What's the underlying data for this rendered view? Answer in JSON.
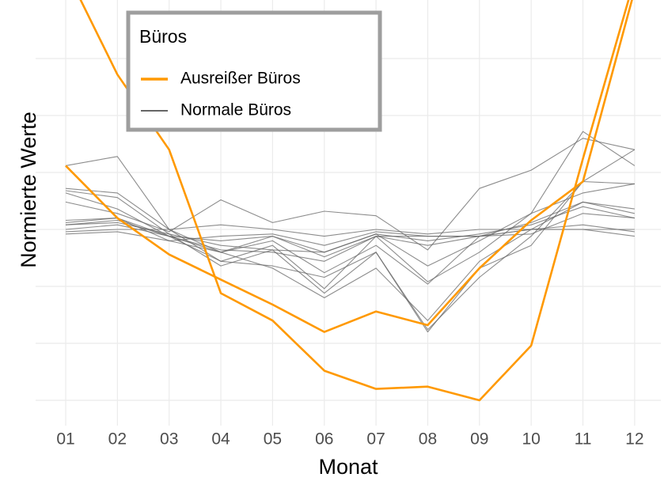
{
  "chart_data": {
    "type": "line",
    "x_label": "Monat",
    "y_label": "Normierte Werte",
    "categories": [
      "01",
      "02",
      "03",
      "04",
      "05",
      "06",
      "07",
      "08",
      "09",
      "10",
      "11",
      "12"
    ],
    "ylim": [
      0.2,
      2.0
    ],
    "yticks": [
      0.25,
      0.5,
      0.75,
      1,
      1.25,
      1.5,
      1.75
    ],
    "grid": true,
    "legend": {
      "title": "Büros",
      "position": "top-left"
    },
    "series": [
      {
        "name": "Ausreißer Büros",
        "color": "#ff9900",
        "width": 2.6,
        "lines": [
          {
            "values": [
              1.28,
              1.05,
              0.89,
              0.78,
              0.67,
              0.55,
              0.64,
              0.58,
              0.83,
              1.04,
              1.21,
              2.05
            ]
          },
          {
            "values": [
              2.14,
              1.68,
              1.35,
              0.72,
              0.6,
              0.38,
              0.3,
              0.31,
              0.25,
              0.49,
              1.31,
              2.1
            ]
          }
        ]
      },
      {
        "name": "Normale Büros",
        "color": "#666666",
        "width": 1.1,
        "lines": [
          {
            "values": [
              1.28,
              1.32,
              1.0,
              0.9,
              0.97,
              0.9,
              0.98,
              0.84,
              0.95,
              1.07,
              1.43,
              1.28
            ]
          },
          {
            "values": [
              1.18,
              1.16,
              1.0,
              0.86,
              0.93,
              0.74,
              0.97,
              0.77,
              0.9,
              1.07,
              1.16,
              1.2
            ]
          },
          {
            "values": [
              1.17,
              1.14,
              0.98,
              0.84,
              0.91,
              0.72,
              0.9,
              0.56,
              0.79,
              0.97,
              1.21,
              1.2
            ]
          },
          {
            "values": [
              1.16,
              1.09,
              0.97,
              0.9,
              0.83,
              0.7,
              0.83,
              0.6,
              0.86,
              1.0,
              1.12,
              1.09
            ]
          },
          {
            "values": [
              1.12,
              1.07,
              0.99,
              1.13,
              1.03,
              1.08,
              1.06,
              0.91,
              1.18,
              1.26,
              1.4,
              1.35
            ]
          },
          {
            "values": [
              1.04,
              1.05,
              0.97,
              0.95,
              0.97,
              0.88,
              0.97,
              0.93,
              0.97,
              1.03,
              1.12,
              1.07
            ]
          },
          {
            "values": [
              1.02,
              1.03,
              0.98,
              0.93,
              0.91,
              0.9,
              0.98,
              0.95,
              0.98,
              1.02,
              1.1,
              1.05
            ]
          },
          {
            "values": [
              1.0,
              1.02,
              0.97,
              0.91,
              0.9,
              0.86,
              0.97,
              0.97,
              0.97,
              1.0,
              1.0,
              0.97
            ]
          },
          {
            "values": [
              0.98,
              0.99,
              0.95,
              0.9,
              0.95,
              0.81,
              0.93,
              0.76,
              0.97,
              1.0,
              1.02,
              0.99
            ]
          },
          {
            "values": [
              1.02,
              1.04,
              0.97,
              0.86,
              0.84,
              0.79,
              0.9,
              0.55,
              0.83,
              0.93,
              1.21,
              1.35
            ]
          },
          {
            "values": [
              1.03,
              1.05,
              0.95,
              0.97,
              0.98,
              0.93,
              0.99,
              0.97,
              0.97,
              0.98,
              1.07,
              1.05
            ]
          },
          {
            "values": [
              0.99,
              1.0,
              1.0,
              1.02,
              1.0,
              0.97,
              1.0,
              0.98,
              1.0,
              1.0,
              1.0,
              1.0
            ]
          }
        ]
      }
    ]
  }
}
